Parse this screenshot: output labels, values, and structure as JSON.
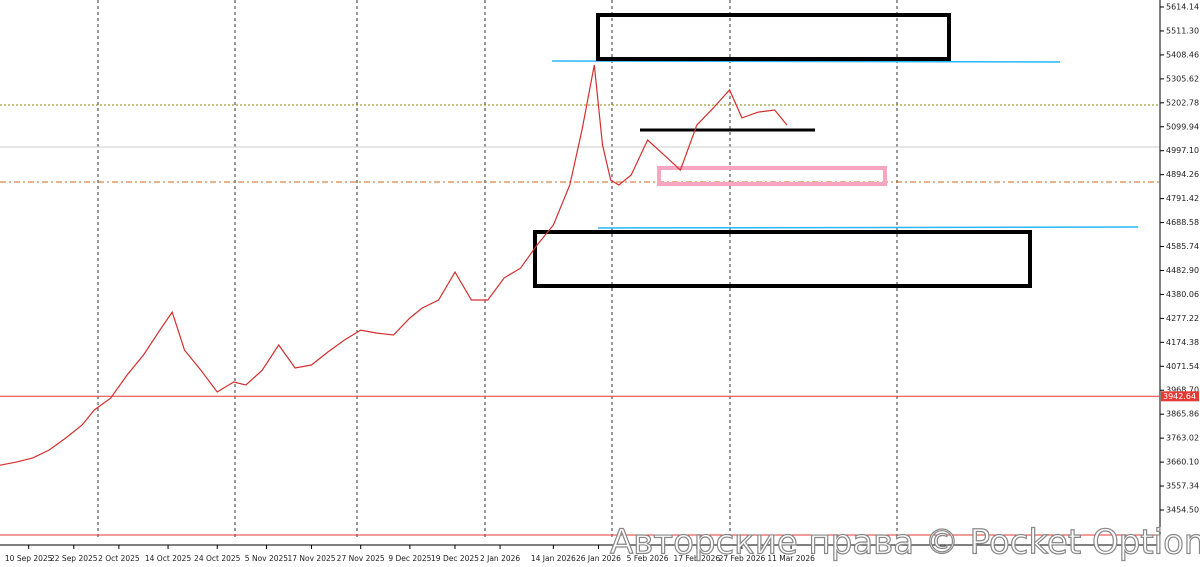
{
  "chart_data": {
    "type": "line",
    "xlim": [
      0,
      283
    ],
    "ylim": [
      3325.7,
      5644.2
    ],
    "xticks": [
      {
        "value": 7,
        "label": "10 Sep 2025"
      },
      {
        "value": 18,
        "label": "22 Sep 2025"
      },
      {
        "value": 29,
        "label": "2 Oct 2025"
      },
      {
        "value": 41,
        "label": "14 Oct 2025"
      },
      {
        "value": 53,
        "label": "24 Oct 2025"
      },
      {
        "value": 65,
        "label": "5 Nov 2025"
      },
      {
        "value": 76,
        "label": "17 Nov 2025"
      },
      {
        "value": 88,
        "label": "27 Nov 2025"
      },
      {
        "value": 100,
        "label": "9 Dec 2025"
      },
      {
        "value": 111,
        "label": "19 Dec 2025"
      },
      {
        "value": 122,
        "label": "2 Jan 2026"
      },
      {
        "value": 135,
        "label": "14 Jan 2026"
      },
      {
        "value": 146,
        "label": "26 Jan 2026"
      },
      {
        "value": 158,
        "label": "5 Feb 2026"
      },
      {
        "value": 170,
        "label": "17 Feb 2026"
      },
      {
        "value": 181,
        "label": "27 Feb 2026"
      },
      {
        "value": 193,
        "label": "11 Mar 2026"
      }
    ],
    "yticks": [
      {
        "value": 5614.14,
        "label": "5614.14"
      },
      {
        "value": 5511.3,
        "label": "5511.30"
      },
      {
        "value": 5408.46,
        "label": "5408.46"
      },
      {
        "value": 5305.62,
        "label": "5305.62"
      },
      {
        "value": 5202.78,
        "label": "5202.78"
      },
      {
        "value": 5099.94,
        "label": "5099.94"
      },
      {
        "value": 4997.1,
        "label": "4997.10"
      },
      {
        "value": 4894.26,
        "label": "4894.26"
      },
      {
        "value": 4791.42,
        "label": "4791.42"
      },
      {
        "value": 4688.58,
        "label": "4688.58"
      },
      {
        "value": 4585.74,
        "label": "4585.74"
      },
      {
        "value": 4482.9,
        "label": "4482.90"
      },
      {
        "value": 4380.06,
        "label": "4380.06"
      },
      {
        "value": 4277.22,
        "label": "4277.22"
      },
      {
        "value": 4174.38,
        "label": "4174.38"
      },
      {
        "value": 4071.54,
        "label": "4071.54"
      },
      {
        "value": 3968.7,
        "label": "3968.70"
      },
      {
        "value": 3865.86,
        "label": "3865.86"
      },
      {
        "value": 3763.02,
        "label": "3763.02"
      },
      {
        "value": 3660.1,
        "label": "3660.10"
      },
      {
        "value": 3557.34,
        "label": "3557.34"
      },
      {
        "value": 3454.5,
        "label": "3454.50"
      }
    ],
    "series": [
      {
        "color": "#d32f2f",
        "x": [
          0,
          4,
          8,
          12,
          16,
          20,
          23,
          27,
          31,
          35,
          39,
          42,
          45,
          49,
          53,
          57,
          60,
          64,
          68,
          72,
          76,
          80,
          84,
          88,
          92,
          96,
          100,
          103,
          107,
          111,
          115,
          119,
          123,
          127,
          131,
          135,
          139,
          142,
          145,
          147,
          149,
          151,
          154,
          158,
          162,
          166,
          170,
          174,
          178,
          181,
          185,
          189,
          192
        ],
        "values": [
          3647,
          3660,
          3678,
          3712,
          3763,
          3819,
          3884,
          3935,
          4034,
          4120,
          4227,
          4304,
          4141,
          4055,
          3961,
          4004,
          3991,
          4055,
          4163,
          4064,
          4077,
          4133,
          4184,
          4227,
          4214,
          4206,
          4279,
          4322,
          4356,
          4476,
          4356,
          4356,
          4451,
          4493,
          4592,
          4678,
          4850,
          5086,
          5365,
          5022,
          4871,
          4850,
          4893,
          5043,
          4979,
          4914,
          5107,
          5180,
          5258,
          5138,
          5163,
          5172,
          5107
        ]
      }
    ],
    "levels": [
      {
        "value": 3942.64,
        "label": "3942.64",
        "color": "#e53935"
      }
    ],
    "watermark": "Авторские права © Pocket Option"
  }
}
